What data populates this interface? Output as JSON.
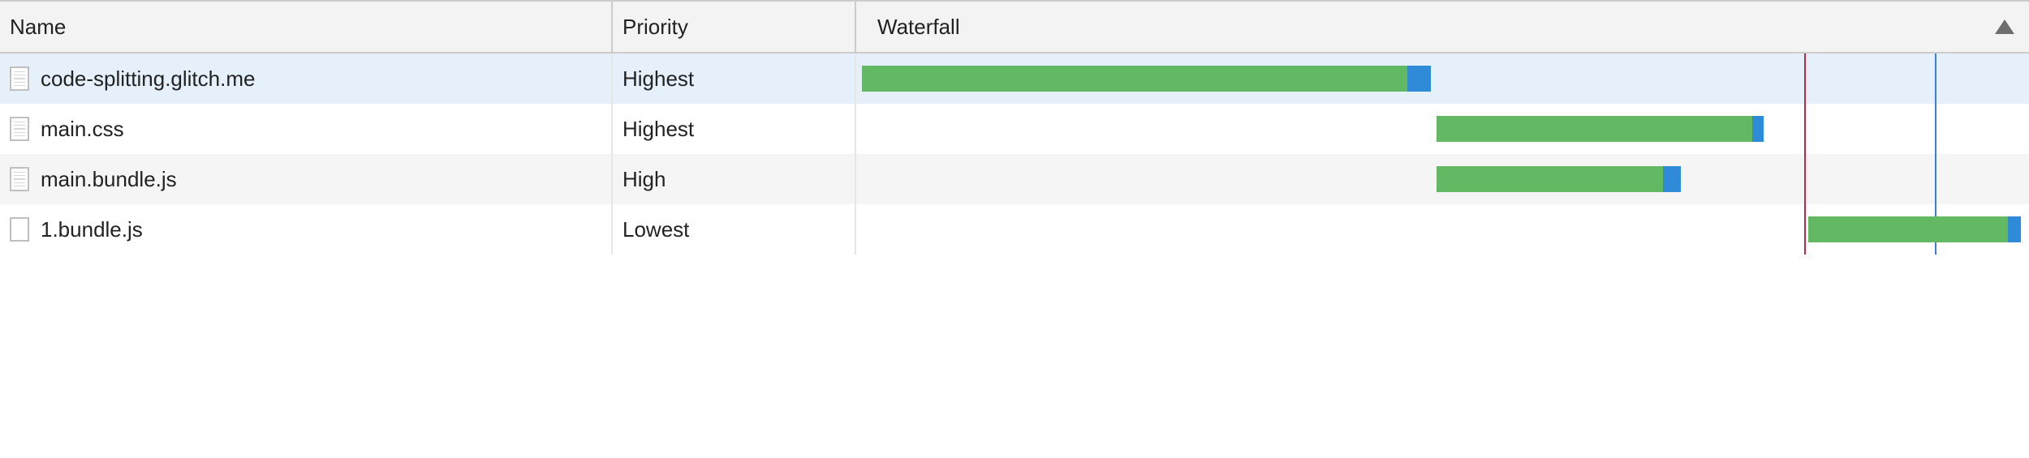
{
  "columns": {
    "name": "Name",
    "priority": "Priority",
    "waterfall": "Waterfall",
    "sorted": "waterfall",
    "sort_dir": "asc"
  },
  "colors": {
    "header_bg": "#f3f3f3",
    "row_selected_bg": "#e5f0fb",
    "row_alt_bg": "#f5f5f5",
    "row_bg": "#ffffff",
    "border": "#cccccc",
    "bar_green": "#63b963",
    "bar_blue": "#2f8bd8",
    "marker_red": "#b02e4c",
    "marker_blue": "#3a7fe0",
    "sort_arrow": "#6e6e6e"
  },
  "waterfall": {
    "domain_start": 0,
    "domain_end": 100,
    "markers": [
      {
        "pos": 80.8,
        "color": "#b02e4c"
      },
      {
        "pos": 92,
        "color": "#3a7fe0"
      }
    ]
  },
  "rows": [
    {
      "name": "code-splitting.glitch.me",
      "priority": "Highest",
      "icon": "doc",
      "selected": true,
      "bar": {
        "start": 0.5,
        "main_end": 47,
        "tail_end": 49
      }
    },
    {
      "name": "main.css",
      "priority": "Highest",
      "icon": "doc",
      "selected": false,
      "bar": {
        "start": 49.5,
        "main_end": 76.4,
        "tail_end": 77.4
      }
    },
    {
      "name": "main.bundle.js",
      "priority": "High",
      "icon": "doc",
      "selected": false,
      "alt": true,
      "bar": {
        "start": 49.5,
        "main_end": 68.8,
        "tail_end": 70.3
      }
    },
    {
      "name": "1.bundle.js",
      "priority": "Lowest",
      "icon": "blank",
      "selected": false,
      "bar": {
        "start": 81.2,
        "main_end": 98.2,
        "tail_end": 99.3
      }
    }
  ]
}
